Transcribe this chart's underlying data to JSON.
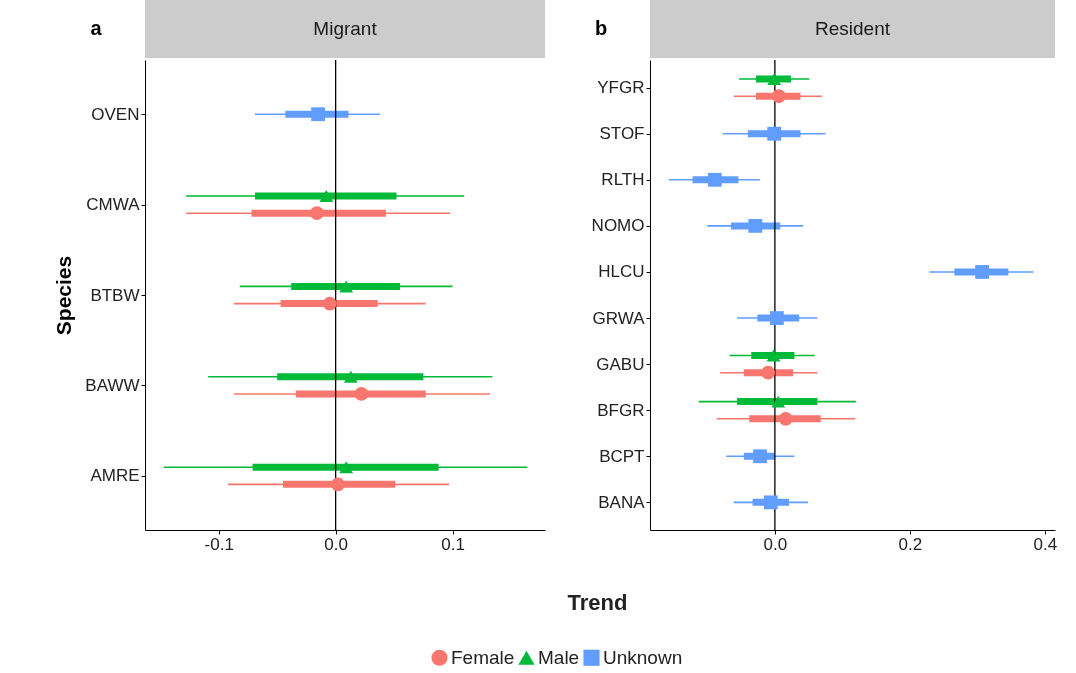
{
  "chart_data": [
    {
      "type": "scatter",
      "orientation": "horizontal",
      "title": "Migrant",
      "annotations": [
        "a"
      ],
      "xlabel": "Trend",
      "ylabel": "Species",
      "categories": [
        "OVEN",
        "CMWA",
        "BTBW",
        "BAWW",
        "AMRE"
      ],
      "xlim": [
        -0.163,
        0.179
      ],
      "xticks": [
        {
          "value": -0.1,
          "label": "-0.1"
        },
        {
          "value": 0,
          "label": "0.0"
        },
        {
          "value": 0.1,
          "label": "0.1"
        }
      ],
      "legend": "bottom",
      "ref_lines": [
        {
          "axis": "x",
          "value": 0,
          "color": "#000000"
        }
      ],
      "series": [
        {
          "name": "Female",
          "color": "#f8766d",
          "marker": "circle",
          "values": [
            null,
            -0.016,
            -0.005,
            0.022,
            0.002
          ],
          "errors": [
            null,
            [
              -0.128,
              0.098
            ],
            [
              -0.087,
              0.077
            ],
            [
              -0.087,
              0.132
            ],
            [
              -0.092,
              0.097
            ]
          ]
        },
        {
          "type": "bar",
          "color": "#f8766d",
          "base": [
            null,
            -0.072,
            -0.047,
            -0.034,
            -0.045
          ],
          "values": [
            null,
            0.115,
            0.083,
            0.111,
            0.096
          ]
        },
        {
          "name": "Male",
          "color": "#00ba38",
          "marker": "triangle",
          "values": [
            null,
            -0.008,
            0.009,
            0.013,
            0.009
          ],
          "errors": [
            null,
            [
              -0.128,
              0.11
            ],
            [
              -0.082,
              0.1
            ],
            [
              -0.109,
              0.134
            ],
            [
              -0.147,
              0.164
            ]
          ]
        },
        {
          "type": "bar",
          "color": "#00ba38",
          "base": [
            null,
            -0.069,
            -0.038,
            -0.05,
            -0.071
          ],
          "values": [
            null,
            0.121,
            0.093,
            0.125,
            0.159
          ]
        },
        {
          "name": "Unknown",
          "color": "#619cff",
          "marker": "square",
          "values": [
            -0.015,
            null,
            null,
            null,
            null
          ],
          "errors": [
            [
              -0.069,
              0.038
            ],
            null,
            null,
            null,
            null
          ]
        },
        {
          "type": "bar",
          "color": "#619cff",
          "base": [
            -0.043,
            null,
            null,
            null,
            null
          ],
          "values": [
            0.054,
            null,
            null,
            null,
            null
          ]
        }
      ]
    },
    {
      "type": "scatter",
      "orientation": "horizontal",
      "title": "Resident",
      "annotations": [
        "b"
      ],
      "categories": [
        "YFGR",
        "STOF",
        "RLTH",
        "NOMO",
        "HLCU",
        "GRWA",
        "GABU",
        "BFGR",
        "BCPT",
        "BANA"
      ],
      "xlim": [
        -0.185,
        0.415
      ],
      "xticks": [
        {
          "value": 0,
          "label": "0.0"
        },
        {
          "value": 0.2,
          "label": "0.2"
        },
        {
          "value": 0.4,
          "label": "0.4"
        }
      ],
      "ref_lines": [
        {
          "axis": "x",
          "value": 0,
          "color": "#000000"
        }
      ],
      "series": [
        {
          "color": "#f8766d",
          "marker": "circle",
          "values": [
            0.006,
            null,
            null,
            null,
            null,
            null,
            -0.01,
            0.016,
            null,
            null
          ],
          "errors": [
            [
              -0.061,
              0.07
            ],
            null,
            null,
            null,
            null,
            null,
            [
              -0.081,
              0.063
            ],
            [
              -0.086,
              0.119
            ],
            null,
            null
          ]
        },
        {
          "type": "bar",
          "color": "#f8766d",
          "base": [
            -0.028,
            null,
            null,
            null,
            null,
            null,
            -0.046,
            -0.038,
            null,
            null
          ],
          "values": [
            0.066,
            null,
            null,
            null,
            null,
            null,
            0.073,
            0.106,
            null,
            null
          ]
        },
        {
          "color": "#00ba38",
          "marker": "triangle",
          "values": [
            -0.001,
            null,
            null,
            null,
            null,
            null,
            -0.002,
            0.005,
            null,
            null
          ],
          "errors": [
            [
              -0.053,
              0.051
            ],
            null,
            null,
            null,
            null,
            null,
            [
              -0.067,
              0.059
            ],
            [
              -0.113,
              0.12
            ],
            null,
            null
          ]
        },
        {
          "type": "bar",
          "color": "#00ba38",
          "base": [
            -0.028,
            null,
            null,
            null,
            null,
            null,
            -0.035,
            -0.056,
            null,
            null
          ],
          "values": [
            0.052,
            null,
            null,
            null,
            null,
            null,
            0.064,
            0.119,
            null,
            null
          ]
        },
        {
          "color": "#619cff",
          "marker": "square",
          "values": [
            null,
            -0.001,
            -0.089,
            -0.029,
            0.307,
            0.003,
            null,
            null,
            -0.022,
            -0.006
          ],
          "errors": [
            null,
            [
              -0.077,
              0.075
            ],
            [
              -0.157,
              -0.022
            ],
            [
              -0.1,
              0.042
            ],
            [
              0.229,
              0.383
            ],
            [
              -0.056,
              0.063
            ],
            null,
            null,
            [
              -0.072,
              0.029
            ],
            [
              -0.061,
              0.049
            ]
          ]
        },
        {
          "type": "bar",
          "color": "#619cff",
          "base": [
            null,
            -0.04,
            -0.122,
            -0.065,
            0.266,
            -0.026,
            null,
            null,
            -0.046,
            -0.033
          ],
          "values": [
            null,
            0.078,
            0.068,
            0.073,
            0.08,
            0.062,
            null,
            null,
            0.046,
            0.054
          ]
        }
      ]
    }
  ]
}
